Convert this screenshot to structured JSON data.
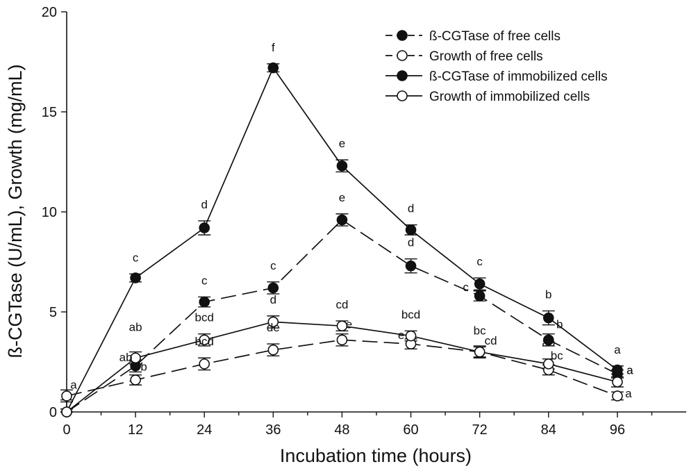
{
  "chart_data": {
    "type": "line",
    "title": "",
    "xlabel": "Incubation time (hours)",
    "ylabel": "ß-CGTase (U/mL), Growth (mg/mL)",
    "x_ticks": [
      "0",
      "12",
      "24",
      "36",
      "48",
      "60",
      "72",
      "84",
      "96"
    ],
    "y_ticks": [
      "0",
      "5",
      "10",
      "15",
      "20"
    ],
    "xlim": [
      0,
      108
    ],
    "ylim": [
      0,
      20
    ],
    "grid": false,
    "legend_position": "top-right",
    "x": [
      0,
      12,
      24,
      36,
      48,
      60,
      72,
      84,
      96
    ],
    "series": [
      {
        "name": "ß-CGTase of free cells",
        "line": "dashed",
        "marker": "filled",
        "values": [
          0.0,
          2.3,
          5.5,
          6.2,
          9.6,
          7.3,
          5.8,
          3.6,
          1.9
        ],
        "errors": [
          0.15,
          0.3,
          0.25,
          0.3,
          0.3,
          0.35,
          0.25,
          0.3,
          0.2
        ],
        "labels": [
          "",
          "ab",
          "c",
          "c",
          "e",
          "d",
          "c",
          "b",
          "a"
        ]
      },
      {
        "name": "Growth of free cells",
        "line": "dashed",
        "marker": "open",
        "values": [
          0.8,
          1.6,
          2.4,
          3.1,
          3.6,
          3.4,
          3.0,
          2.1,
          0.8
        ],
        "errors": [
          0.3,
          0.25,
          0.3,
          0.3,
          0.3,
          0.25,
          0.3,
          0.25,
          0.2
        ],
        "labels": [
          "",
          "b",
          "bcd",
          "de",
          "e",
          "e",
          "cd",
          "bc",
          "a"
        ]
      },
      {
        "name": "ß-CGTase of immobilized cells",
        "line": "solid",
        "marker": "filled",
        "values": [
          0.0,
          6.7,
          9.2,
          17.2,
          12.3,
          9.1,
          6.4,
          4.7,
          2.1
        ],
        "errors": [
          0.15,
          0.2,
          0.35,
          0.2,
          0.3,
          0.25,
          0.3,
          0.35,
          0.2
        ],
        "labels": [
          "",
          "c",
          "d",
          "f",
          "e",
          "d",
          "c",
          "b",
          "a"
        ]
      },
      {
        "name": "Growth of immobilized cells",
        "line": "solid",
        "marker": "open",
        "values": [
          0.0,
          2.7,
          3.6,
          4.5,
          4.3,
          3.8,
          3.0,
          2.4,
          1.5
        ],
        "errors": [
          0.6,
          0.3,
          0.3,
          0.3,
          0.25,
          0.25,
          0.25,
          0.25,
          0.25
        ],
        "labels": [
          "a",
          "ab",
          "bcd",
          "d",
          "cd",
          "bcd",
          "bc",
          "ab",
          "a"
        ]
      }
    ]
  }
}
